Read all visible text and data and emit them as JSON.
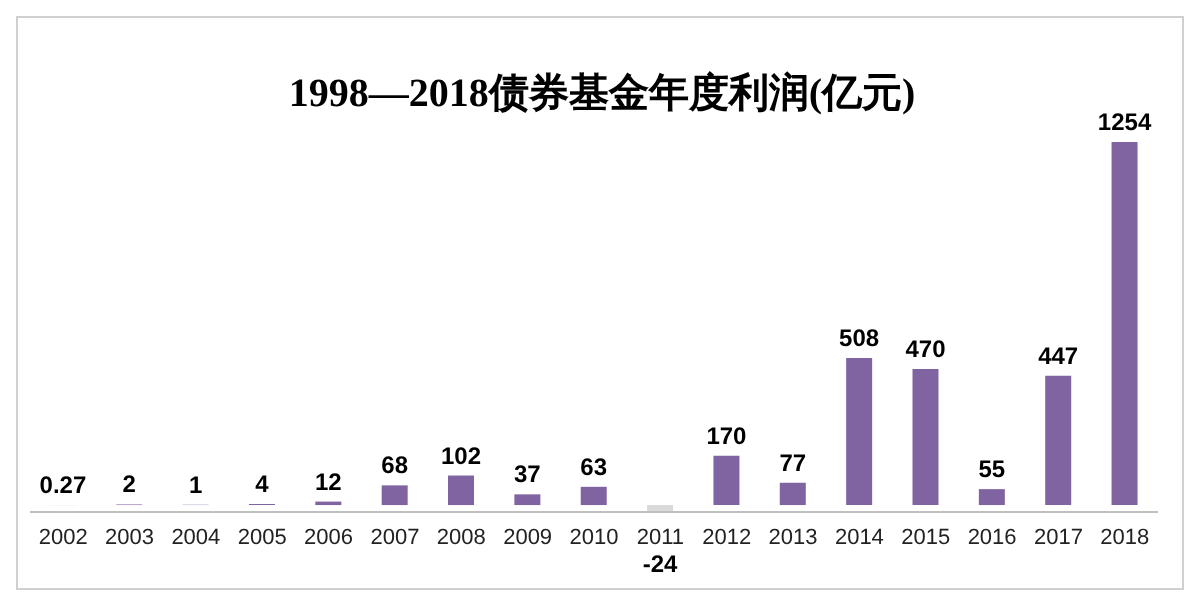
{
  "chart_data": {
    "type": "bar",
    "title": "1998—2018债券基金年度利润(亿元)",
    "categories": [
      "2002",
      "2003",
      "2004",
      "2005",
      "2006",
      "2007",
      "2008",
      "2009",
      "2010",
      "2011",
      "2012",
      "2013",
      "2014",
      "2015",
      "2016",
      "2017",
      "2018"
    ],
    "values": [
      0.27,
      2,
      1,
      4,
      12,
      68,
      102,
      37,
      63,
      -24,
      170,
      77,
      508,
      470,
      55,
      447,
      1254
    ],
    "colors": [
      "#8064a2",
      "#8064a2",
      "#8064a2",
      "#8064a2",
      "#8064a2",
      "#8064a2",
      "#8064a2",
      "#8064a2",
      "#8064a2",
      "#d9d9d9",
      "#8064a2",
      "#8064a2",
      "#8064a2",
      "#8064a2",
      "#8064a2",
      "#8064a2",
      "#8064a2"
    ],
    "data_labels": true
  }
}
